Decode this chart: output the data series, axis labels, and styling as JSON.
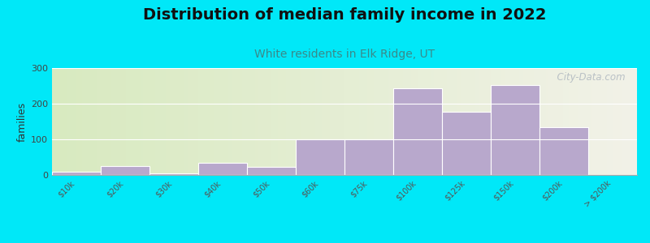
{
  "title": "Distribution of median family income in 2022",
  "subtitle": "White residents in Elk Ridge, UT",
  "ylabel": "families",
  "categories": [
    "$10k",
    "$20k",
    "$30k",
    "$40k",
    "$50k",
    "$60k",
    "$75k",
    "$100k",
    "$125k",
    "$150k",
    "$200k",
    "> $200k"
  ],
  "values": [
    10,
    25,
    5,
    35,
    22,
    100,
    100,
    243,
    178,
    253,
    133,
    0
  ],
  "bar_color": "#b8a8cc",
  "background_outer": "#00e8f8",
  "background_inner_left": "#d8eac0",
  "background_inner_right": "#f2f2e8",
  "ylim": [
    0,
    300
  ],
  "yticks": [
    0,
    100,
    200,
    300
  ],
  "title_fontsize": 14,
  "subtitle_fontsize": 10,
  "ylabel_fontsize": 9,
  "watermark": "  City-Data.com"
}
